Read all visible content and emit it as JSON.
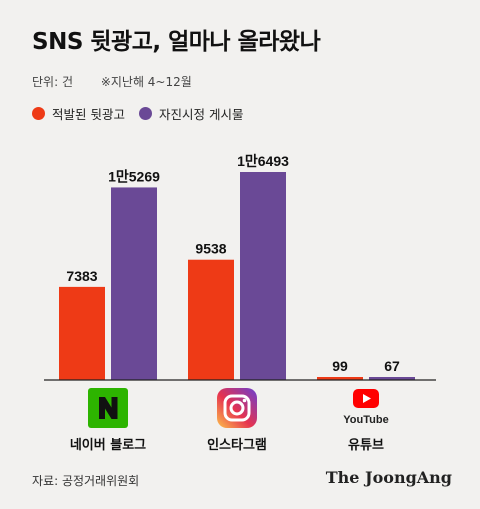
{
  "title": "SNS 뒷광고, 얼마나 올라왔나",
  "unit": "단위: 건",
  "period": "※지난해 4~12월",
  "colors": {
    "red": "#ee3a16",
    "purple": "#6a4996"
  },
  "platforms": [
    {
      "label": "네이버 블로그",
      "icon": "naver-icon"
    },
    {
      "label": "인스타그램",
      "icon": "instagram-icon"
    },
    {
      "label": "유튜브",
      "icon": "youtube-icon",
      "logo_text": "YouTube"
    }
  ],
  "chart_data": {
    "type": "bar",
    "categories": [
      "네이버 블로그",
      "인스타그램",
      "유튜브"
    ],
    "series": [
      {
        "name": "적발된 뒷광고",
        "color": "#ee3a16",
        "values": [
          7383,
          9538,
          99
        ],
        "labels": [
          "7383",
          "9538",
          "99"
        ]
      },
      {
        "name": "자진시정 게시물",
        "color": "#6a4996",
        "values": [
          15269,
          16493,
          67
        ],
        "labels": [
          "1만5269",
          "1만6493",
          "67"
        ]
      }
    ],
    "legend": "top-left",
    "grid": false
  },
  "source": "자료: 공정거래위원회",
  "brand": "The JoongAng"
}
